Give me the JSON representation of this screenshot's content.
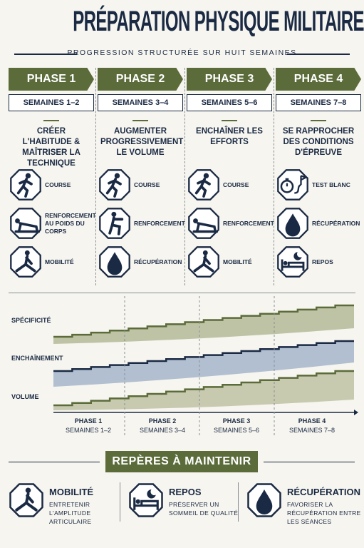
{
  "header": {
    "title": "PRÉPARATION PHYSIQUE MILITAIRE",
    "subtitle": "PROGRESSION STRUCTURÉE SUR HUIT SEMAINES"
  },
  "phases": [
    {
      "name": "PHASE 1",
      "weeks": "SEMAINES 1–2",
      "goal": "CRÉER L'HABITUDE & MAÎTRISER LA TECHNIQUE",
      "activities": [
        "COURSE",
        "RENFORCEMENT AU POIDS DU CORPS",
        "MOBILITÉ"
      ]
    },
    {
      "name": "PHASE 2",
      "weeks": "SEMAINES 3–4",
      "goal": "AUGMENTER PROGRESSIVEMENT LE VOLUME",
      "activities": [
        "COURSE",
        "RENFORCEMENT",
        "RÉCUPÉRATION"
      ]
    },
    {
      "name": "PHASE 3",
      "weeks": "SEMAINES 5–6",
      "goal": "ENCHAÎNER LES EFFORTS",
      "activities": [
        "COURSE",
        "RENFORCEMENT",
        "MOBILITÉ"
      ]
    },
    {
      "name": "PHASE 4",
      "weeks": "SEMAINES 7–8",
      "goal": "SE RAPPROCHER DES CONDITIONS D'ÉPREUVE",
      "activities": [
        "TEST BLANC",
        "RÉCUPÉRATION",
        "REPOS"
      ]
    }
  ],
  "progression": {
    "row_labels": [
      "SPÉCIFICITÉ",
      "ENCHAÎNEMENT",
      "VOLUME"
    ],
    "phase_labels": [
      {
        "name": "PHASE 1",
        "weeks": "SEMAINES 1–2"
      },
      {
        "name": "PHASE 2",
        "weeks": "SEMAINES 3–4"
      },
      {
        "name": "PHASE 3",
        "weeks": "SEMAINES 5–6"
      },
      {
        "name": "PHASE 4",
        "weeks": "SEMAINES 7–8"
      }
    ]
  },
  "reminders": {
    "title": "REPÈRES À MAINTENIR",
    "items": [
      {
        "title": "MOBILITÉ",
        "text": "ENTRETENIR L'AMPLITUDE ARTICULAIRE"
      },
      {
        "title": "REPOS",
        "text": "PRÉSERVER UN SOMMEIL DE QUALITÉ"
      },
      {
        "title": "RÉCUPÉRATION",
        "text": "FAVORISER LA RÉCUPÉRATION ENTRE LES SÉANCES"
      }
    ]
  }
}
